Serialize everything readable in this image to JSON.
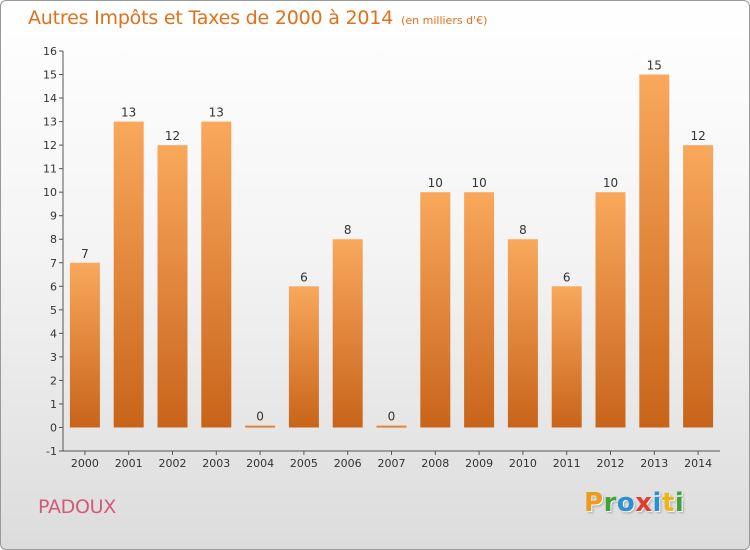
{
  "title": "Autres Impôts et Taxes de 2000 à 2014",
  "subtitle": "(en milliers d'€)",
  "commune": "PADOUX",
  "logo": {
    "letters": [
      "P",
      "r",
      "o",
      "x",
      "i",
      "t",
      "i"
    ],
    "colors": [
      "#ee9a1c",
      "#3fa33a",
      "#2b8fd6",
      "#e23b2e",
      "#2b8fd6",
      "#f0b21a",
      "#3fa33a"
    ]
  },
  "colors": {
    "bar_top": "#f9a85c",
    "bar_bottom": "#c8641a",
    "text": "#333333"
  },
  "chart_data": {
    "type": "bar",
    "title": "Autres Impôts et Taxes de 2000 à 2014",
    "subtitle": "(en milliers d'€)",
    "categories": [
      "2000",
      "2001",
      "2002",
      "2003",
      "2004",
      "2005",
      "2006",
      "2007",
      "2008",
      "2009",
      "2010",
      "2011",
      "2012",
      "2013",
      "2014"
    ],
    "values": [
      7,
      13,
      12,
      13,
      0,
      6,
      8,
      0,
      10,
      10,
      8,
      6,
      10,
      15,
      12
    ],
    "ylim": [
      -1,
      16
    ],
    "yticks": [
      -1,
      0,
      1,
      2,
      3,
      4,
      5,
      6,
      7,
      8,
      9,
      10,
      11,
      12,
      13,
      14,
      15,
      16
    ],
    "xlabel": "",
    "ylabel": "",
    "grid": false,
    "legend": "none"
  }
}
